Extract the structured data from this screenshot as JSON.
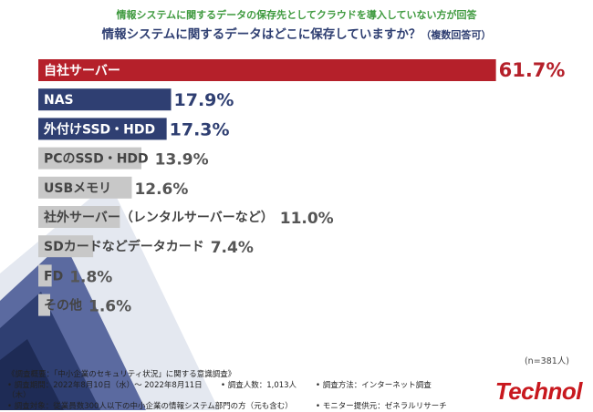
{
  "header": {
    "subtitle": "情報システムに関するデータの保存先としてクラウドを導入していない方が回答",
    "title": "情報システムに関するデータはどこに保存していますか？",
    "title_note": "（複数回答可）"
  },
  "chart_data": {
    "type": "bar",
    "orientation": "horizontal",
    "categories": [
      "自社サーバー",
      "NAS",
      "外付けSSD・HDD",
      "PCのSSD・HDD",
      "USBメモリ",
      "社外サーバー（レンタルサーバーなど）",
      "SDカードなどデータカード",
      "FD",
      "その他"
    ],
    "values": [
      61.7,
      17.9,
      17.3,
      13.9,
      12.6,
      11.0,
      7.4,
      1.8,
      1.6
    ],
    "value_labels": [
      "61.7%",
      "17.9%",
      "17.3%",
      "13.9%",
      "12.6%",
      "11.0%",
      "7.4%",
      "1.8%",
      "1.6%"
    ],
    "unit": "%",
    "colors": [
      "#b5202a",
      "#2f3f72",
      "#2f3f72",
      "#c8c8c8",
      "#c8c8c8",
      "#c8c8c8",
      "#c8c8c8",
      "#c8c8c8",
      "#c8c8c8"
    ],
    "label_colors": [
      "#b5202a",
      "#2f3f72",
      "#2f3f72",
      "#555555",
      "#555555",
      "#555555",
      "#555555",
      "#555555",
      "#555555"
    ],
    "xlim": [
      0,
      70
    ],
    "grid": false,
    "title": "情報システムに関するデータはどこに保存していますか？（複数回答可）",
    "xlabel": "",
    "ylabel": ""
  },
  "sample_note": "(n=381人)",
  "footer": {
    "survey_title": "《調査概要：「中小企業のセキュリティ状況」に関する意識調査》",
    "period": "• 調査期間：2022年8月10日（水）～ 2022年8月11日（木）",
    "respondents": "• 調査人数：1,013人",
    "method": "• 調査方法：インターネット調査",
    "target": "• 調査対象：従業員数300人以下の中小企業の情報システム部門の方（元も含む）",
    "provider": "• モニター提供元：ゼネラルリサーチ"
  },
  "brand": "Technol",
  "colors": {
    "accent_red": "#b5202a",
    "navy": "#2f3f72",
    "green": "#3f9a3f",
    "gray_bar": "#c8c8c8",
    "brand_red": "#c8181e"
  }
}
